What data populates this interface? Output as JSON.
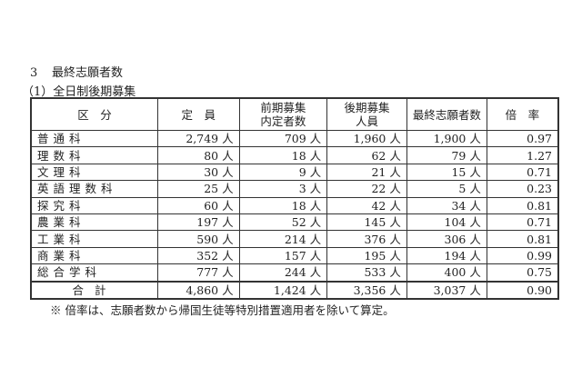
{
  "heading": {
    "number": "3",
    "title": "最終志願者数"
  },
  "subheading": "（1）全日制後期募集",
  "table": {
    "headers": [
      "区　分",
      "定　員",
      "前期募集\n内定者数",
      "後期募集\n人員",
      "最終志願者数",
      "倍　率"
    ],
    "rows": [
      [
        "普通科",
        "2,749 人",
        "709 人",
        "1,960 人",
        "1,900 人",
        "0.97"
      ],
      [
        "理数科",
        "80 人",
        "18 人",
        "62 人",
        "79 人",
        "1.27"
      ],
      [
        "文理科",
        "30 人",
        "9 人",
        "21 人",
        "15 人",
        "0.71"
      ],
      [
        "英語理数科",
        "25 人",
        "3 人",
        "22 人",
        "5 人",
        "0.23"
      ],
      [
        "探究科",
        "60 人",
        "18 人",
        "42 人",
        "34 人",
        "0.81"
      ],
      [
        "農業科",
        "197 人",
        "52 人",
        "145 人",
        "104 人",
        "0.71"
      ],
      [
        "工業科",
        "590 人",
        "214 人",
        "376 人",
        "306 人",
        "0.81"
      ],
      [
        "商業科",
        "352 人",
        "157 人",
        "195 人",
        "194 人",
        "0.99"
      ],
      [
        "総合学科",
        "777 人",
        "244 人",
        "533 人",
        "400 人",
        "0.75"
      ]
    ],
    "total": [
      "合計",
      "4,860 人",
      "1,424 人",
      "3,356 人",
      "3,037 人",
      "0.90"
    ]
  },
  "note": "※ 倍率は、志願者数から帰国生徒等特別措置適用者を除いて算定。"
}
